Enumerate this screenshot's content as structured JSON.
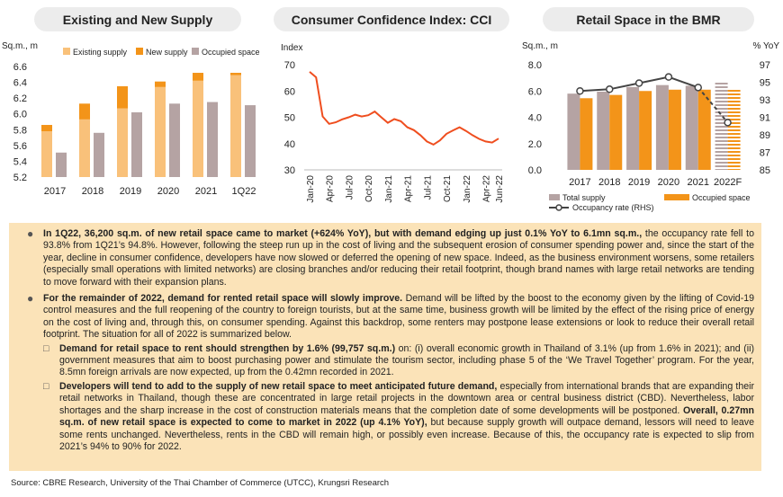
{
  "panels": {
    "supply_title": "Existing and New Supply",
    "cci_title": "Consumer Confidence Index: CCI",
    "retail_title": "Retail Space in the BMR"
  },
  "chart_data": [
    {
      "type": "bar",
      "title": "Existing and New Supply",
      "ylabel": "Sq.m., m",
      "categories": [
        "2017",
        "2018",
        "2019",
        "2020",
        "2021",
        "1Q22"
      ],
      "ylim": [
        5.2,
        6.6
      ],
      "yticks": [
        "5.2",
        "5.4",
        "5.6",
        "5.8",
        "6.0",
        "6.2",
        "6.4",
        "6.6"
      ],
      "stacked_series": [
        {
          "name": "Existing supply",
          "color": "#f9c17a",
          "values": [
            5.78,
            5.93,
            6.07,
            6.34,
            6.42,
            6.49
          ]
        },
        {
          "name": "New supply",
          "color": "#f39419",
          "values": [
            0.08,
            0.2,
            0.28,
            0.07,
            0.1,
            0.03
          ]
        }
      ],
      "series": [
        {
          "name": "Occupied space",
          "color": "#b5a3a3",
          "values": [
            5.51,
            5.76,
            6.02,
            6.13,
            6.15,
            6.11
          ]
        }
      ],
      "legend": "top"
    },
    {
      "type": "line",
      "title": "Consumer Confidence Index: CCI",
      "ylabel": "Index",
      "ylim": [
        30,
        70
      ],
      "yticks": [
        "30",
        "40",
        "50",
        "60",
        "70"
      ],
      "xticks": [
        "Jan-20",
        "Apr-20",
        "Jul-20",
        "Oct-20",
        "Jan-21",
        "Apr-21",
        "Jul-21",
        "Oct-21",
        "Jan-22",
        "Apr-22",
        "Jun-22"
      ],
      "color": "#ef4e1f",
      "values": [
        67.3,
        65.2,
        50.3,
        47.5,
        48.1,
        49.2,
        50.0,
        51.0,
        50.3,
        50.8,
        52.2,
        50.0,
        47.9,
        49.3,
        48.5,
        46.2,
        45.1,
        43.2,
        40.8,
        39.6,
        41.2,
        43.7,
        45.0,
        46.2,
        44.8,
        43.2,
        41.8,
        40.8,
        40.4,
        41.9
      ]
    },
    {
      "type": "bar",
      "title": "Retail Space in the BMR",
      "ylabel": "Sq.m., m",
      "y2label": "% YoY",
      "categories": [
        "2017",
        "2018",
        "2019",
        "2020",
        "2021",
        "2022F"
      ],
      "ylim": [
        0,
        8
      ],
      "yticks": [
        "0.0",
        "2.0",
        "4.0",
        "6.0",
        "8.0"
      ],
      "y2lim": [
        85,
        97
      ],
      "y2ticks": [
        "85",
        "87",
        "89",
        "91",
        "93",
        "95",
        "97"
      ],
      "series": [
        {
          "name": "Total supply",
          "color": "#b5a3a3",
          "values": [
            5.8,
            5.95,
            6.3,
            6.45,
            6.4,
            6.7
          ]
        },
        {
          "name": "Occupied space",
          "color": "#f39419",
          "values": [
            5.45,
            5.7,
            6.0,
            6.1,
            6.1,
            6.1
          ]
        }
      ],
      "line_series": {
        "name": "Occupancy rate (RHS)",
        "color": "#444444",
        "values": [
          94.0,
          94.2,
          94.9,
          95.6,
          94.4,
          90.4
        ]
      },
      "legend": "bottom"
    }
  ],
  "text": {
    "p1_bold": "In 1Q22, 36,200 sq.m. of new retail space came to market (+624% YoY), but with demand edging up just 0.1% YoY to 6.1mn sq.m.,",
    "p1_rest": " the occupancy rate fell to 93.8% from 1Q21’s 94.8%. However, following the steep run up in the cost of living and the subsequent erosion of consumer spending power and, since the start of the year, decline in consumer confidence, developers have now slowed or deferred the opening of new space. Indeed, as the business environment worsens, some retailers (especially small operations with limited networks) are closing branches and/or reducing their retail footprint, though brand names with large retail networks are tending to move forward with their expansion plans.",
    "p2_bold": "For the remainder of 2022, demand for rented retail space will slowly improve.",
    "p2_rest": " Demand will be lifted by the boost to the economy given by the lifting of Covid-19 control measures and the full reopening of the country to foreign tourists, but at the same time, business growth will be limited by the effect of the rising price of energy on the cost of living and, through this, on consumer spending. Against this backdrop, some renters may postpone lease extensions or look to reduce their overall retail footprint. The situation for all of 2022 is summarized below.",
    "s1_bold": "Demand for retail space to rent should strengthen by 1.6% (99,757 sq.m.)",
    "s1_rest": " on: (i) overall economic growth in Thailand of 3.1% (up from 1.6% in 2021); and (ii) government measures that aim to boost purchasing power and stimulate the tourism sector, including phase 5 of the ‘We Travel Together’ program. For the year, 8.5mn foreign arrivals are now expected, up from the 0.42mn recorded in 2021.",
    "s2_bold": "Developers will tend to add to the supply of new retail space to meet anticipated future demand,",
    "s2_mid": " especially from international brands that are expanding their retail networks in Thailand, though these are concentrated in large retail projects in the downtown area or central business district (CBD). Nevertheless, labor shortages and the sharp increase in the cost of construction materials means that the completion date of some developments will be postponed.",
    "s2_bold2": " Overall, 0.27mn sq.m. of new retail space is expected to come to market in 2022 (up 4.1% YoY),",
    "s2_rest": " but because supply growth will outpace demand, lessors will need to leave some rents unchanged. Nevertheless, rents in the CBD will remain high, or possibly even increase. Because of this, the occupancy rate is expected to slip from 2021’s 94% to 90% for 2022."
  },
  "source": "Source: CBRE Research, University of the Thai Chamber of Commerce (UTCC), Krungsri Research"
}
